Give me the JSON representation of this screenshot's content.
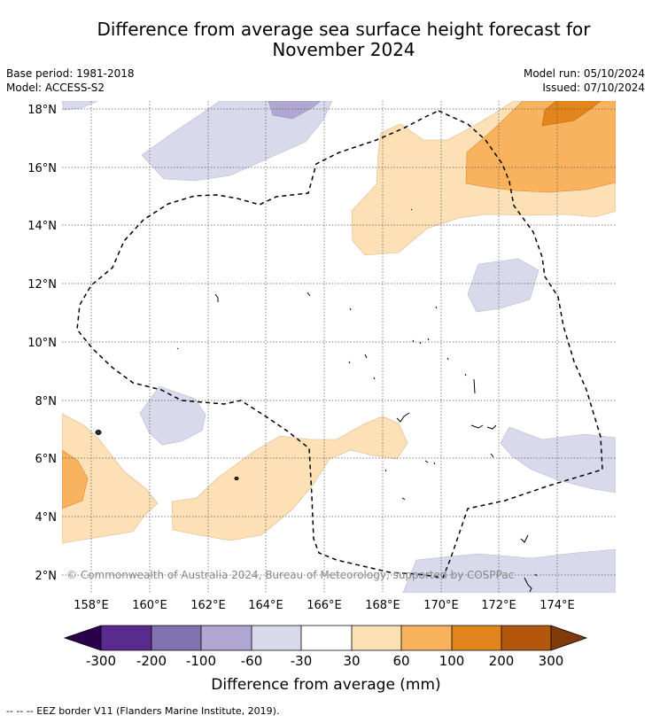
{
  "title": {
    "line1": "Difference from average sea surface height forecast for",
    "line2": "November 2024"
  },
  "info": {
    "base_period": "Base period: 1981-2018",
    "model": "Model: ACCESS-S2",
    "model_run": "Model run: 05/10/2024",
    "issued": "Issued: 07/10/2024"
  },
  "map": {
    "lat_labels": [
      "18°N",
      "16°N",
      "14°N",
      "12°N",
      "10°N",
      "8°N",
      "6°N",
      "4°N",
      "2°N"
    ],
    "lon_labels": [
      "158°E",
      "160°E",
      "162°E",
      "164°E",
      "166°E",
      "168°E",
      "170°E",
      "172°E",
      "174°E"
    ],
    "copyright": "© Commonwealth of Australia 2024, Bureau of Meteorology, supported by COSPPac"
  },
  "colorbar": {
    "ticks": [
      "-300",
      "-200",
      "-100",
      "-60",
      "-30",
      "30",
      "60",
      "100",
      "200",
      "300"
    ],
    "label": "Difference from average (mm)",
    "colors": [
      "#2d004b",
      "#5a2b8f",
      "#8273b3",
      "#b0a8d2",
      "#d9d9ec",
      "#ffffff",
      "#fde0b5",
      "#f9b35f",
      "#e2851b",
      "#b4560b",
      "#7f3b08"
    ]
  },
  "footnote": "--  --  -- EEZ border V11 (Flanders Marine Institute, 2019)."
}
